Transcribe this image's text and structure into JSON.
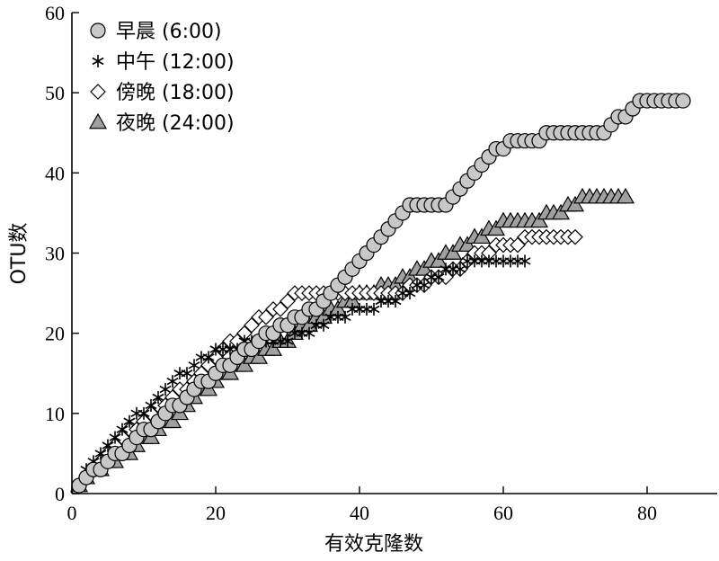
{
  "chart_data": {
    "type": "scatter",
    "xlabel": "有效克隆数",
    "ylabel": "OTU数",
    "xlim": [
      0,
      90
    ],
    "ylim": [
      0,
      60
    ],
    "xticks": [
      0,
      20,
      40,
      60,
      80
    ],
    "yticks": [
      0,
      10,
      20,
      30,
      40,
      50,
      60
    ],
    "grid": false,
    "legend_position": "top-left",
    "series": [
      {
        "name": "早晨 (6:00)",
        "marker": "circle",
        "color": "#c8c8c8",
        "x": [
          1,
          2,
          3,
          4,
          5,
          6,
          7,
          8,
          9,
          10,
          11,
          12,
          13,
          14,
          15,
          16,
          17,
          18,
          19,
          20,
          21,
          22,
          23,
          24,
          25,
          26,
          27,
          28,
          29,
          30,
          31,
          32,
          33,
          34,
          35,
          36,
          37,
          38,
          39,
          40,
          41,
          42,
          43,
          44,
          45,
          46,
          47,
          48,
          49,
          50,
          51,
          52,
          53,
          54,
          55,
          56,
          57,
          58,
          59,
          60,
          61,
          62,
          63,
          64,
          65,
          66,
          67,
          68,
          69,
          70,
          71,
          72,
          73,
          74,
          75,
          76,
          77,
          78,
          79,
          80,
          81,
          82,
          83,
          84,
          85
        ],
        "y": [
          1,
          2,
          3,
          3,
          4,
          5,
          5,
          6,
          7,
          8,
          8,
          9,
          10,
          11,
          11,
          12,
          13,
          14,
          14,
          15,
          16,
          16,
          17,
          18,
          18,
          19,
          20,
          20,
          21,
          21,
          22,
          22,
          23,
          23,
          24,
          25,
          26,
          27,
          28,
          29,
          30,
          31,
          32,
          33,
          34,
          35,
          36,
          36,
          36,
          36,
          36,
          36,
          37,
          38,
          39,
          40,
          41,
          42,
          43,
          43,
          44,
          44,
          44,
          44,
          44,
          45,
          45,
          45,
          45,
          45,
          45,
          45,
          45,
          45,
          46,
          47,
          47,
          48,
          49,
          49,
          49,
          49,
          49,
          49,
          49
        ]
      },
      {
        "name": "中午 (12:00)",
        "marker": "asterisk",
        "color": "#000000",
        "x": [
          1,
          2,
          3,
          4,
          5,
          6,
          7,
          8,
          9,
          10,
          11,
          12,
          13,
          14,
          15,
          16,
          17,
          18,
          19,
          20,
          21,
          22,
          23,
          24,
          25,
          26,
          27,
          28,
          29,
          30,
          31,
          32,
          33,
          34,
          35,
          36,
          37,
          38,
          39,
          40,
          41,
          42,
          43,
          44,
          45,
          46,
          47,
          48,
          49,
          50,
          51,
          52,
          53,
          54,
          55,
          56,
          57,
          58,
          59,
          60,
          61,
          62,
          63
        ],
        "y": [
          1,
          3,
          4,
          5,
          6,
          7,
          8,
          9,
          10,
          10,
          11,
          12,
          13,
          14,
          15,
          15,
          16,
          17,
          17,
          18,
          18,
          18,
          18,
          19,
          19,
          19,
          19,
          19,
          19,
          19,
          20,
          20,
          20,
          21,
          21,
          22,
          22,
          22,
          23,
          23,
          23,
          23,
          24,
          24,
          24,
          25,
          25,
          26,
          26,
          27,
          27,
          28,
          28,
          28,
          29,
          29,
          29,
          29,
          29,
          29,
          29,
          29,
          29
        ]
      },
      {
        "name": "傍晚 (18:00)",
        "marker": "diamond",
        "color": "#ffffff",
        "x": [
          1,
          2,
          3,
          4,
          5,
          6,
          7,
          8,
          9,
          10,
          11,
          12,
          13,
          14,
          15,
          16,
          17,
          18,
          19,
          20,
          21,
          22,
          23,
          24,
          25,
          26,
          27,
          28,
          29,
          30,
          31,
          32,
          33,
          34,
          35,
          36,
          37,
          38,
          39,
          40,
          41,
          42,
          43,
          44,
          45,
          46,
          47,
          48,
          49,
          50,
          51,
          52,
          53,
          54,
          55,
          56,
          57,
          58,
          59,
          60,
          61,
          62,
          63,
          64,
          65,
          66,
          67,
          68,
          69,
          70
        ],
        "y": [
          1,
          2,
          3,
          4,
          5,
          6,
          7,
          8,
          8,
          9,
          10,
          11,
          11,
          12,
          13,
          13,
          14,
          15,
          16,
          17,
          18,
          19,
          19,
          20,
          21,
          22,
          22,
          23,
          23,
          24,
          25,
          25,
          25,
          25,
          25,
          25,
          25,
          25,
          25,
          25,
          25,
          25,
          25,
          25,
          25,
          25,
          26,
          26,
          26,
          27,
          27,
          27,
          28,
          28,
          29,
          30,
          30,
          30,
          31,
          31,
          31,
          31,
          32,
          32,
          32,
          32,
          32,
          32,
          32,
          32
        ]
      },
      {
        "name": "夜晚 (24:00)",
        "marker": "triangle",
        "color": "#a0a0a0",
        "x": [
          1,
          2,
          3,
          4,
          5,
          6,
          7,
          8,
          9,
          10,
          11,
          12,
          13,
          14,
          15,
          16,
          17,
          18,
          19,
          20,
          21,
          22,
          23,
          24,
          25,
          26,
          27,
          28,
          29,
          30,
          31,
          32,
          33,
          34,
          35,
          36,
          37,
          38,
          39,
          40,
          41,
          42,
          43,
          44,
          45,
          46,
          47,
          48,
          49,
          50,
          51,
          52,
          53,
          54,
          55,
          56,
          57,
          58,
          59,
          60,
          61,
          62,
          63,
          64,
          65,
          66,
          67,
          68,
          69,
          70,
          71,
          72,
          73,
          74,
          75,
          76,
          77
        ],
        "y": [
          1,
          2,
          3,
          3,
          4,
          4,
          5,
          5,
          6,
          7,
          7,
          8,
          9,
          9,
          10,
          11,
          12,
          13,
          13,
          14,
          15,
          15,
          16,
          16,
          17,
          17,
          18,
          18,
          19,
          19,
          20,
          21,
          21,
          22,
          22,
          23,
          23,
          24,
          24,
          25,
          25,
          25,
          26,
          26,
          26,
          27,
          27,
          28,
          28,
          29,
          29,
          30,
          30,
          31,
          31,
          32,
          32,
          33,
          33,
          34,
          34,
          34,
          34,
          34,
          34,
          35,
          35,
          35,
          36,
          36,
          37,
          37,
          37,
          37,
          37,
          37,
          37
        ]
      }
    ]
  }
}
